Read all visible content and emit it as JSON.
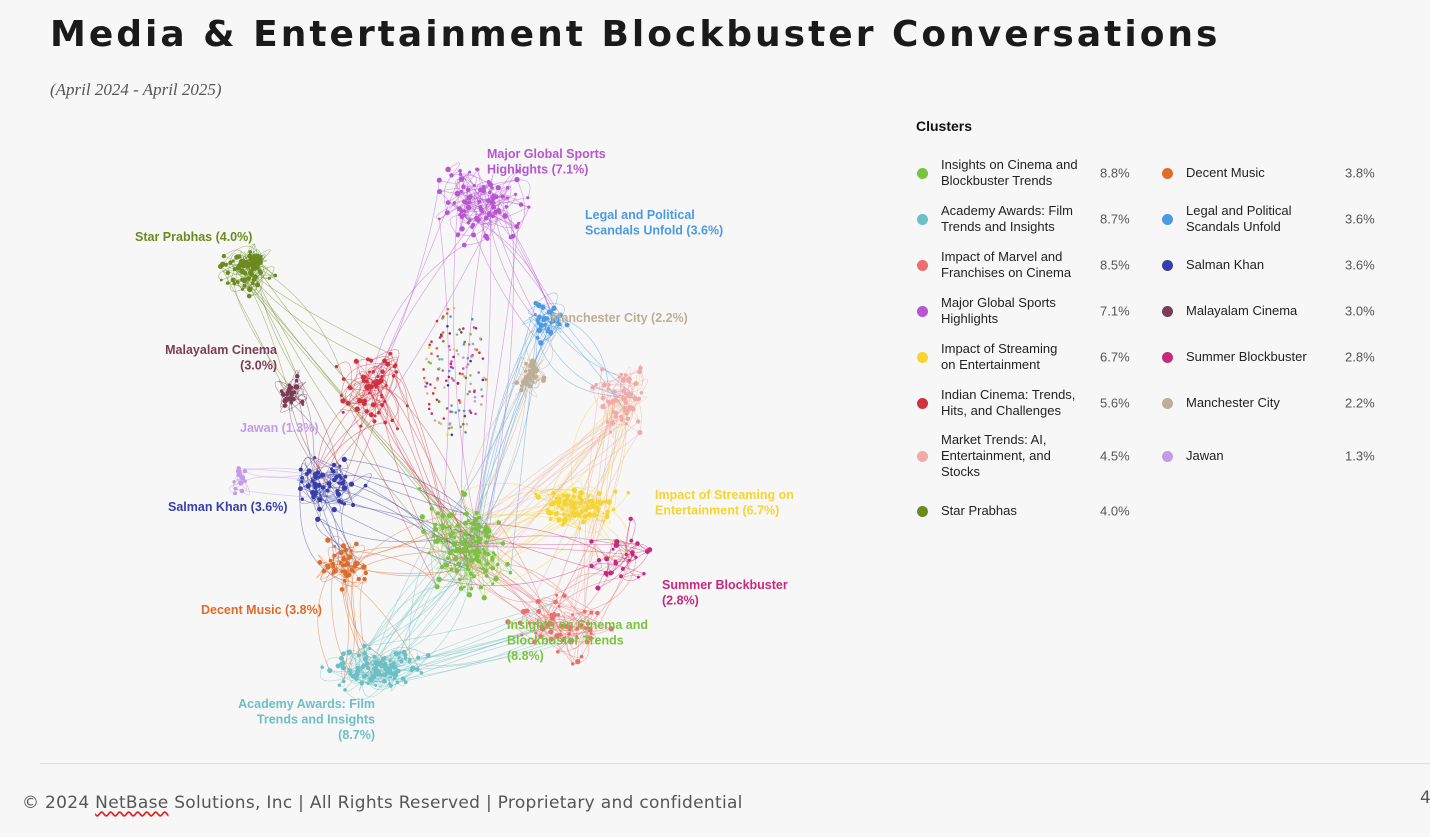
{
  "title": "Media & Entertainment Blockbuster Conversations",
  "subtitle": "(April 2024 - April 2025)",
  "legend": {
    "title": "Clusters",
    "items": [
      {
        "label": "Insights on Cinema and\nBlockbuster Trends",
        "value": "8.8%",
        "color": "#7cc242"
      },
      {
        "label": "Academy Awards: Film\nTrends and Insights",
        "value": "8.7%",
        "color": "#6cbfc4"
      },
      {
        "label": "Impact of Marvel and\nFranchises on Cinema",
        "value": "8.5%",
        "color": "#ec6e6e"
      },
      {
        "label": "Major Global Sports\nHighlights",
        "value": "7.1%",
        "color": "#b855d0"
      },
      {
        "label": "Impact of Streaming\non Entertainment",
        "value": "6.7%",
        "color": "#f5d531"
      },
      {
        "label": "Indian Cinema: Trends,\nHits, and Challenges",
        "value": "5.6%",
        "color": "#cf3340"
      },
      {
        "label": "Market Trends: AI,\nEntertainment, and\nStocks",
        "value": "4.5%",
        "color": "#f2a9a9"
      },
      {
        "label": "Star Prabhas",
        "value": "4.0%",
        "color": "#6b8a1f"
      },
      {
        "label": "Decent Music",
        "value": "3.8%",
        "color": "#de6c2c"
      },
      {
        "label": "Legal and Political\nScandals Unfold",
        "value": "3.6%",
        "color": "#4c9ae2"
      },
      {
        "label": "Salman Khan",
        "value": "3.6%",
        "color": "#363fa8"
      },
      {
        "label": "Malayalam Cinema",
        "value": "3.0%",
        "color": "#7c3c55"
      },
      {
        "label": "Summer Blockbuster",
        "value": "2.8%",
        "color": "#c62a7e"
      },
      {
        "label": "Manchester City",
        "value": "2.2%",
        "color": "#bfae95"
      },
      {
        "label": "Jawan",
        "value": "1.3%",
        "color": "#c49be6"
      }
    ]
  },
  "network": {
    "clusters": [
      {
        "name": "insights-cinema",
        "color": "#7cc242",
        "label": [
          "Insights on Cinema and",
          "Blockbuster Trends",
          "(8.8%)"
        ],
        "anchor": "start"
      },
      {
        "name": "academy-awards",
        "color": "#6cbfc4",
        "label": [
          "Academy Awards: Film",
          "Trends and Insights",
          "(8.7%)"
        ],
        "anchor": "end"
      },
      {
        "name": "marvel-franchises",
        "color": "#ec6e6e",
        "label": [],
        "anchor": "start"
      },
      {
        "name": "global-sports",
        "color": "#b855d0",
        "label": [
          "Major Global Sports",
          "Highlights (7.1%)"
        ],
        "anchor": "start"
      },
      {
        "name": "streaming",
        "color": "#f5d531",
        "label": [
          "Impact of Streaming on",
          "Entertainment  (6.7%)"
        ],
        "anchor": "start"
      },
      {
        "name": "indian-cinema",
        "color": "#cf3340",
        "label": [],
        "anchor": "start"
      },
      {
        "name": "market-trends",
        "color": "#f2a9a9",
        "label": [],
        "anchor": "start"
      },
      {
        "name": "star-prabhas",
        "color": "#6b8a1f",
        "label": [
          "Star Prabhas (4.0%)"
        ],
        "anchor": "start"
      },
      {
        "name": "decent-music",
        "color": "#de6c2c",
        "label": [
          "Decent Music (3.8%)"
        ],
        "anchor": "start"
      },
      {
        "name": "legal-political",
        "color": "#4c9ae2",
        "label": [
          "Legal and Political",
          "Scandals Unfold  (3.6%)"
        ],
        "anchor": "start"
      },
      {
        "name": "salman-khan",
        "color": "#363fa8",
        "label": [
          "Salman Khan (3.6%)"
        ],
        "anchor": "start"
      },
      {
        "name": "malayalam-cinema",
        "color": "#7c3c55",
        "label": [
          "Malayalam Cinema",
          "(3.0%)"
        ],
        "anchor": "end"
      },
      {
        "name": "summer-blockbuster",
        "color": "#c62a7e",
        "label": [
          "Summer Blockbuster",
          "(2.8%)"
        ],
        "anchor": "start"
      },
      {
        "name": "manchester-city",
        "color": "#bfae95",
        "label": [
          "Manchester City  (2.2%)"
        ],
        "anchor": "start"
      },
      {
        "name": "jawan",
        "color": "#c49be6",
        "label": [
          "Jawan (1.3%)"
        ],
        "anchor": "start"
      }
    ]
  },
  "footer": {
    "prefix": "© 2024 ",
    "company": "NetBase",
    "suffix": " Solutions, Inc | All Rights Reserved | Proprietary and confidential"
  },
  "page_number": "4"
}
